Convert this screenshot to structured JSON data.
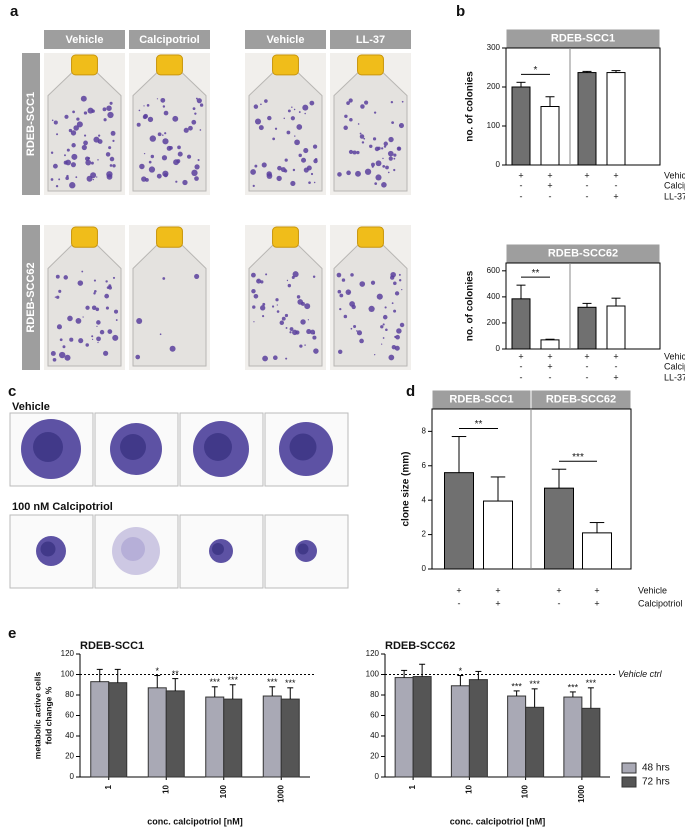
{
  "panel_labels": [
    "a",
    "b",
    "c",
    "d",
    "e"
  ],
  "panel_a": {
    "column_headers": [
      "Vehicle",
      "Calcipotriol",
      "Vehicle",
      "LL-37"
    ],
    "row_headers": [
      "RDEB-SCC1",
      "RDEB-SCC62"
    ]
  },
  "panel_c": {
    "row_labels": [
      "Vehicle",
      "100 nM Calcipotriol"
    ]
  },
  "chart_data": [
    {
      "type": "bar",
      "title": "RDEB-SCC1",
      "ylabel": "no. of colonies",
      "ylim": [
        0,
        300
      ],
      "yticks": [
        0,
        100,
        200,
        300
      ],
      "values": [
        200,
        150,
        237,
        237
      ],
      "errors": [
        12,
        25,
        3,
        5
      ],
      "colors": [
        "#707070",
        "#ffffff",
        "#707070",
        "#ffffff"
      ],
      "significance": [
        {
          "label": "*",
          "between": [
            0,
            1
          ]
        }
      ],
      "conditions": [
        {
          "name": "Vehicle",
          "values": [
            "+",
            "+",
            "+",
            "+"
          ]
        },
        {
          "name": "Calcipotriol",
          "values": [
            "-",
            "+",
            "-",
            "-"
          ]
        },
        {
          "name": "LL-37",
          "values": [
            "-",
            "-",
            "-",
            "+"
          ]
        }
      ]
    },
    {
      "type": "bar",
      "title": "RDEB-SCC62",
      "ylabel": "no. of colonies",
      "ylim": [
        0,
        660
      ],
      "yticks": [
        0,
        200,
        400,
        600
      ],
      "values": [
        385,
        70,
        320,
        330
      ],
      "errors": [
        105,
        5,
        30,
        60
      ],
      "colors": [
        "#707070",
        "#ffffff",
        "#707070",
        "#ffffff"
      ],
      "significance": [
        {
          "label": "**",
          "between": [
            0,
            1
          ]
        }
      ],
      "conditions": [
        {
          "name": "Vehicle",
          "values": [
            "+",
            "+",
            "+",
            "+"
          ]
        },
        {
          "name": "Calcipotriol",
          "values": [
            "-",
            "+",
            "-",
            "-"
          ]
        },
        {
          "name": "LL-37",
          "values": [
            "-",
            "-",
            "-",
            "+"
          ]
        }
      ]
    },
    {
      "type": "bar",
      "groups": [
        "RDEB-SCC1",
        "RDEB-SCC62"
      ],
      "ylabel": "clone size (mm)",
      "ylim": [
        0,
        9.3
      ],
      "yticks": [
        0,
        2,
        4,
        6,
        8
      ],
      "values": [
        5.6,
        3.95,
        4.7,
        2.1
      ],
      "errors": [
        2.1,
        1.4,
        1.1,
        0.6
      ],
      "colors": [
        "#707070",
        "#ffffff",
        "#707070",
        "#ffffff"
      ],
      "significance": [
        {
          "label": "**",
          "between": [
            0,
            1
          ]
        },
        {
          "label": "***",
          "between": [
            2,
            3
          ]
        }
      ],
      "conditions": [
        {
          "name": "Vehicle",
          "values": [
            "+",
            "+",
            "+",
            "+"
          ]
        },
        {
          "name": "Calcipotriol",
          "values": [
            "-",
            "+",
            "-",
            "+"
          ]
        }
      ]
    },
    {
      "type": "grouped_bar",
      "title": "RDEB-SCC1",
      "ylabel": [
        "metabolic active cells",
        "fold change %"
      ],
      "xlabel": "conc. calcipotriol [nM]",
      "categories": [
        "1",
        "10",
        "100",
        "1000"
      ],
      "ylim": [
        0,
        120
      ],
      "yticks": [
        0,
        20,
        40,
        60,
        80,
        100,
        120
      ],
      "reference": {
        "value": 100
      },
      "series": [
        {
          "color": "#a9a9b5",
          "values": [
            93,
            87,
            78,
            79
          ],
          "errors": [
            12,
            12,
            10,
            9
          ],
          "stars": [
            null,
            "*",
            "***",
            "***"
          ]
        },
        {
          "color": "#555555",
          "values": [
            92,
            84,
            76,
            76
          ],
          "errors": [
            13,
            12,
            14,
            11
          ],
          "stars": [
            null,
            "**",
            "***",
            "***"
          ]
        }
      ]
    },
    {
      "type": "grouped_bar",
      "title": "RDEB-SCC62",
      "xlabel": "conc. calcipotriol [nM]",
      "categories": [
        "1",
        "10",
        "100",
        "1000"
      ],
      "ylim": [
        0,
        120
      ],
      "yticks": [
        0,
        20,
        40,
        60,
        80,
        100,
        120
      ],
      "reference": {
        "value": 100,
        "label": "Vehicle ctrl"
      },
      "legend": "right",
      "series": [
        {
          "name": "48 hrs",
          "color": "#a9a9b5",
          "values": [
            97,
            89,
            79,
            78
          ],
          "errors": [
            7,
            10,
            5,
            5
          ],
          "stars": [
            null,
            "*",
            "***",
            "***"
          ]
        },
        {
          "name": "72 hrs",
          "color": "#555555",
          "values": [
            98,
            95,
            68,
            67
          ],
          "errors": [
            12,
            8,
            18,
            20
          ],
          "stars": [
            null,
            null,
            "***",
            "***"
          ]
        }
      ]
    }
  ]
}
